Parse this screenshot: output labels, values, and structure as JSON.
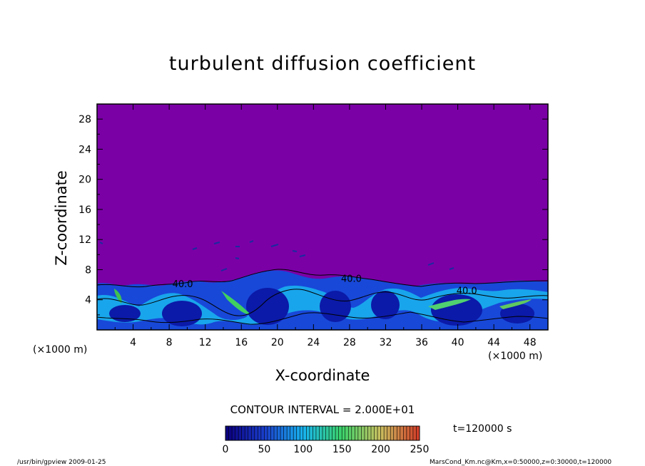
{
  "chart_data": {
    "type": "heatmap",
    "title": "turbulent diffusion coefficient",
    "xlabel": "X-coordinate",
    "ylabel": "Z-coordinate",
    "x_unit": "(×1000 m)",
    "y_unit": "(×1000 m)",
    "xlim": [
      0,
      50
    ],
    "ylim": [
      0,
      30
    ],
    "x_ticks": [
      4,
      8,
      12,
      16,
      20,
      24,
      28,
      32,
      36,
      40,
      44,
      48
    ],
    "y_ticks": [
      4,
      8,
      12,
      16,
      20,
      24,
      28
    ],
    "contour_interval_text": "CONTOUR INTERVAL = 2.000E+01",
    "contour_labels": [
      {
        "text": "40.0",
        "x": 9.5,
        "z": 5.7
      },
      {
        "text": "40.0",
        "x": 28.2,
        "z": 6.4
      },
      {
        "text": "40.0",
        "x": 41.0,
        "z": 4.8
      }
    ],
    "colorbar": {
      "ticks": [
        0,
        50,
        100,
        150,
        200,
        250
      ],
      "range": [
        0,
        250
      ],
      "colors": [
        "#0b0080",
        "#1a3fcc",
        "#18b4ee",
        "#3bd36a",
        "#c8c060",
        "#d2402a"
      ]
    },
    "background_value_color": "#7a00a6",
    "time_label": "t=120000 s"
  },
  "footer": {
    "left": "/usr/bin/gpview   2009-01-25",
    "right": "MarsCond_Km.nc@Km,x=0:50000,z=0:30000,t=120000"
  }
}
